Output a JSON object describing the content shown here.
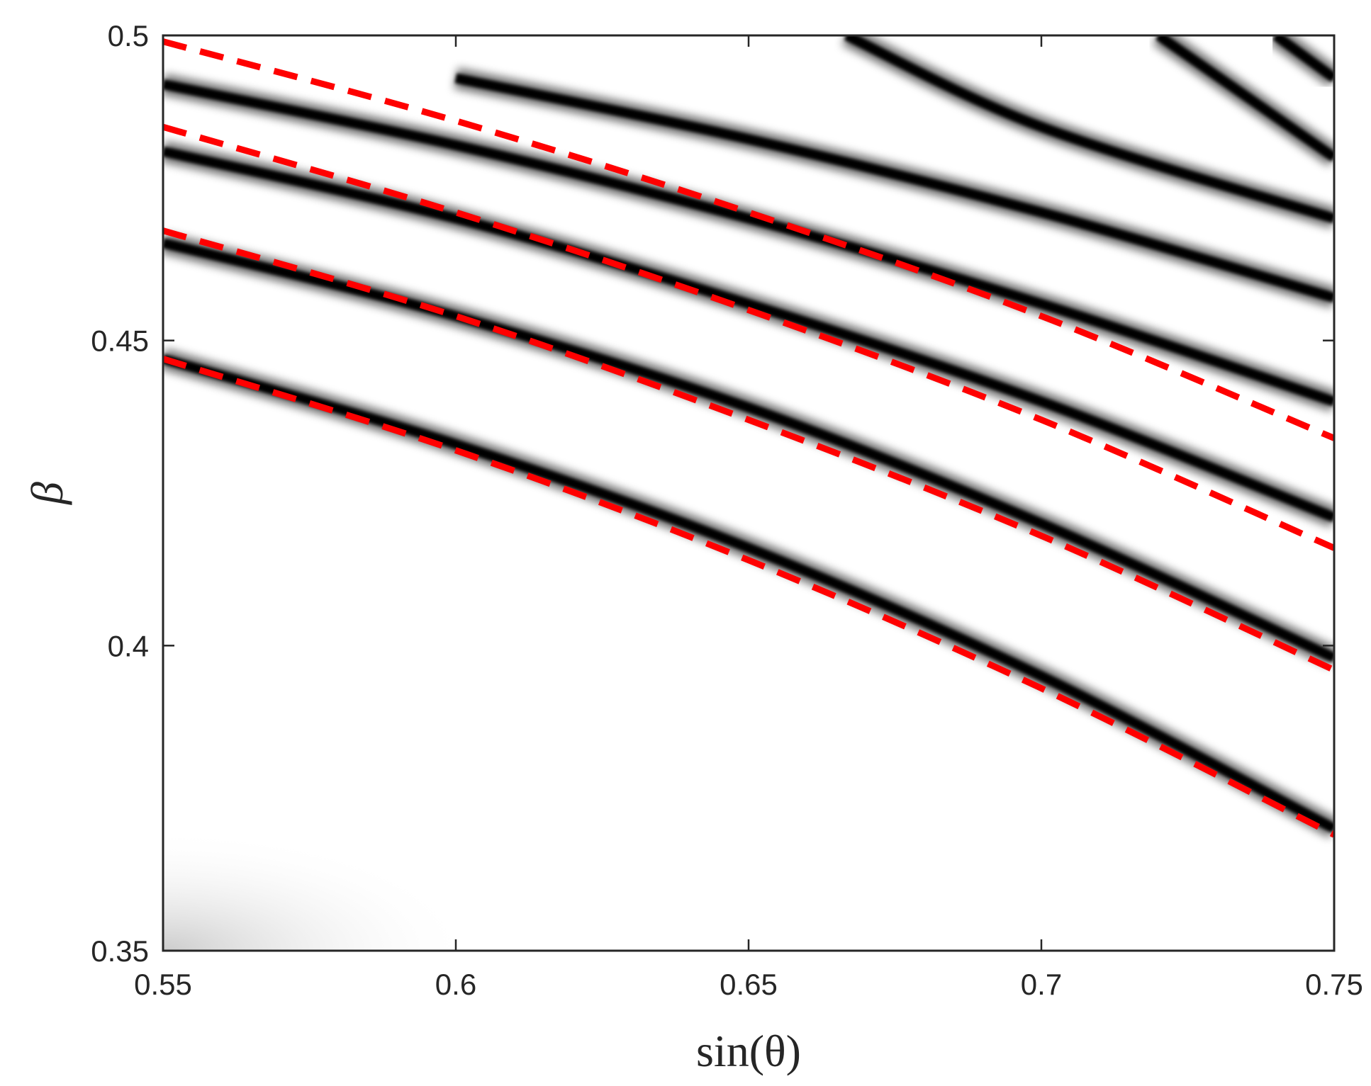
{
  "chart_data": {
    "type": "line",
    "xlabel": "sin(θ)",
    "ylabel": "β",
    "xlim": [
      0.55,
      0.75
    ],
    "ylim": [
      0.35,
      0.5
    ],
    "xticks": [
      "0.55",
      "0.6",
      "0.65",
      "0.7",
      "0.75"
    ],
    "yticks": [
      "0.35",
      "0.4",
      "0.45",
      "0.5"
    ],
    "grid": false,
    "legend": "none",
    "background": {
      "kind": "grayscale intensity map",
      "dark_ridges": [
        {
          "x": [
            0.55,
            0.6,
            0.65,
            0.7,
            0.75
          ],
          "y": [
            0.447,
            0.433,
            0.416,
            0.395,
            0.37
          ]
        },
        {
          "x": [
            0.55,
            0.6,
            0.65,
            0.7,
            0.75
          ],
          "y": [
            0.466,
            0.454,
            0.439,
            0.42,
            0.398
          ]
        },
        {
          "x": [
            0.55,
            0.6,
            0.65,
            0.7,
            0.75
          ],
          "y": [
            0.481,
            0.47,
            0.456,
            0.44,
            0.421
          ]
        },
        {
          "x": [
            0.55,
            0.6,
            0.65,
            0.7,
            0.75
          ],
          "y": [
            0.492,
            0.482,
            0.47,
            0.456,
            0.44
          ]
        },
        {
          "x": [
            0.6,
            0.65,
            0.7,
            0.75
          ],
          "y": [
            0.493,
            0.483,
            0.471,
            0.457
          ]
        },
        {
          "x": [
            0.6667,
            0.7,
            0.75
          ],
          "y": [
            0.5,
            0.485,
            0.47
          ]
        },
        {
          "x": [
            0.72,
            0.75
          ],
          "y": [
            0.5,
            0.48
          ]
        },
        {
          "x": [
            0.74,
            0.75
          ],
          "y": [
            0.5,
            0.493
          ]
        }
      ]
    },
    "series": [
      {
        "style": "dashed",
        "color": "#ff0000",
        "x": [
          0.55,
          0.6,
          0.65,
          0.7,
          0.75
        ],
        "y": [
          0.447,
          0.432,
          0.414,
          0.393,
          0.369
        ]
      },
      {
        "style": "dashed",
        "color": "#ff0000",
        "x": [
          0.55,
          0.6,
          0.65,
          0.7,
          0.75
        ],
        "y": [
          0.468,
          0.454,
          0.437,
          0.418,
          0.396
        ]
      },
      {
        "style": "dashed",
        "color": "#ff0000",
        "x": [
          0.55,
          0.6,
          0.65,
          0.7,
          0.75
        ],
        "y": [
          0.485,
          0.471,
          0.455,
          0.437,
          0.416
        ]
      },
      {
        "style": "dashed",
        "color": "#ff0000",
        "x": [
          0.55,
          0.6,
          0.65,
          0.7,
          0.75
        ],
        "y": [
          0.499,
          0.486,
          0.471,
          0.454,
          0.434
        ]
      }
    ]
  }
}
